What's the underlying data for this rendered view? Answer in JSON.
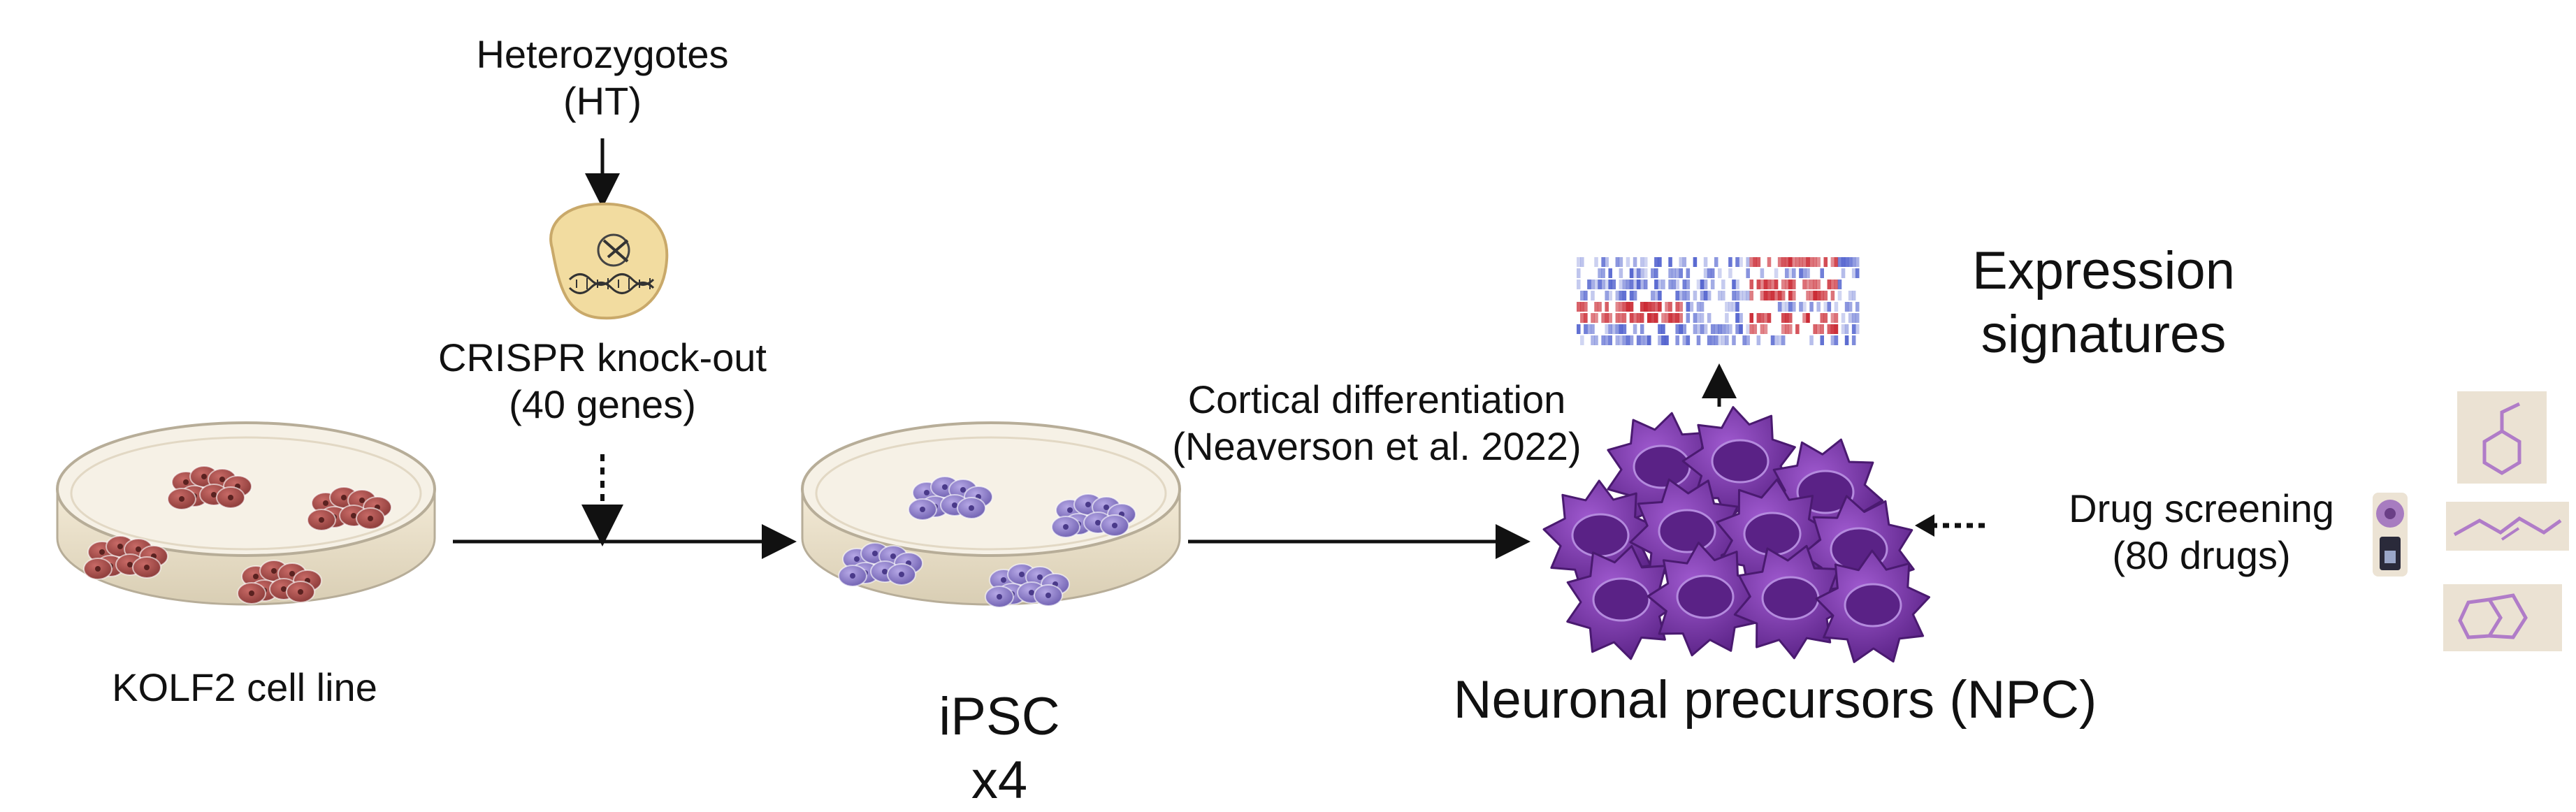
{
  "labels": {
    "heterozygotes_line1": "Heterozygotes",
    "heterozygotes_line2": "(HT)",
    "crispr_line1": "CRISPR knock-out",
    "crispr_line2": "(40 genes)",
    "kolf2": "KOLF2 cell line",
    "ipsc_line1": "iPSC",
    "ipsc_line2": "x4",
    "cortical_line1": "Cortical differentiation",
    "cortical_line2": "(Neaverson et al. 2022)",
    "expression_line1": "Expression",
    "expression_line2": "signatures",
    "drug_line1": "Drug screening",
    "drug_line2": "(80 drugs)",
    "npc": "Neuronal precursors (NPC)"
  },
  "colors": {
    "kolf2_cells": "#a04a48",
    "ipsc_cells": "#8a7cc4",
    "npc_cells": "#7d3aa8",
    "heatmap_red": "#c8202a",
    "heatmap_blue": "#3b4ec8",
    "crispr_cell": "#f2dca0",
    "drug_structure": "#b07cc8",
    "drug_card_bg": "#ebe2d3"
  },
  "icons": {
    "crispr": "dna-scissors-cell-icon",
    "drug_screening": "syringe-vial-icon",
    "drug_structures": [
      "cyclohexyl-structure-icon",
      "chain-structure-icon",
      "bicyclic-structure-icon"
    ]
  }
}
